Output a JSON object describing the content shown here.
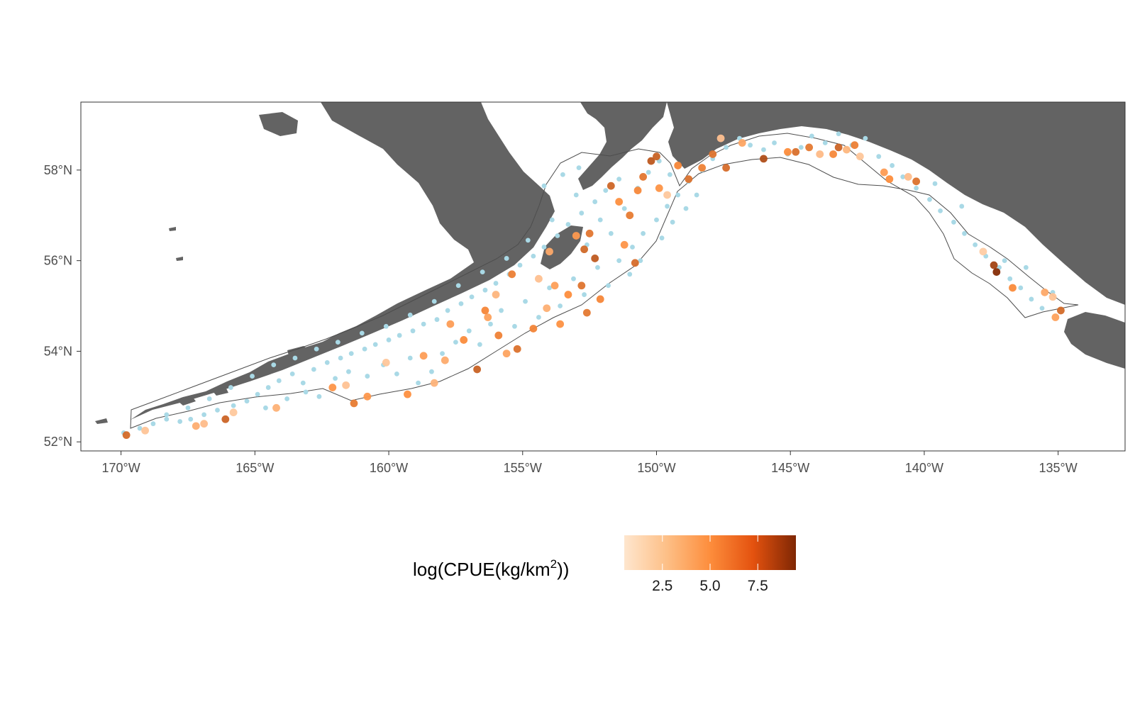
{
  "colors": {
    "land": "#636363",
    "survey_outline": "#4d4d4d",
    "panel_border": "#333333",
    "absence_point": "#a9d9e6",
    "gradient_low": "#fee6ce",
    "gradient_mid": "#fd8d3c",
    "gradient_high": "#7f2704"
  },
  "chart_data": {
    "type": "scatter",
    "map_type": "survey station map",
    "x_axis": {
      "range": [
        -171.5,
        -132.5
      ],
      "ticks": [
        -170,
        -165,
        -160,
        -155,
        -150,
        -145,
        -140,
        -135
      ],
      "tick_labels": [
        "170°W",
        "165°W",
        "160°W",
        "155°W",
        "150°W",
        "145°W",
        "140°W",
        "135°W"
      ]
    },
    "y_axis": {
      "range": [
        51.8,
        59.5
      ],
      "ticks": [
        52,
        54,
        56,
        58
      ],
      "tick_labels": [
        "52°N",
        "54°N",
        "56°N",
        "58°N"
      ]
    },
    "grid": false,
    "legend": {
      "position": "bottom",
      "title_prefix": "log(CPUE(kg",
      "title_slash": "/",
      "title_unit": "km",
      "title_exponent": "2",
      "title_suffix": "))",
      "range": [
        0.5,
        9.5
      ],
      "breaks": [
        2.5,
        5.0,
        7.5
      ],
      "break_labels": [
        "2.5",
        "5.0",
        "7.5"
      ]
    },
    "zero_catch_stations": [
      [
        -169.9,
        52.2
      ],
      [
        -169.3,
        52.3
      ],
      [
        -168.8,
        52.4
      ],
      [
        -168.3,
        52.5
      ],
      [
        -167.8,
        52.45
      ],
      [
        -167.4,
        52.5
      ],
      [
        -166.9,
        52.6
      ],
      [
        -166.4,
        52.7
      ],
      [
        -165.8,
        52.8
      ],
      [
        -165.3,
        52.9
      ],
      [
        -164.9,
        53.05
      ],
      [
        -164.5,
        53.2
      ],
      [
        -164.1,
        53.35
      ],
      [
        -163.6,
        53.5
      ],
      [
        -163.2,
        53.3
      ],
      [
        -162.8,
        53.6
      ],
      [
        -162.3,
        53.75
      ],
      [
        -161.8,
        53.85
      ],
      [
        -161.4,
        53.95
      ],
      [
        -160.9,
        54.05
      ],
      [
        -160.5,
        54.15
      ],
      [
        -160.0,
        54.25
      ],
      [
        -159.6,
        54.35
      ],
      [
        -159.1,
        54.45
      ],
      [
        -158.7,
        54.6
      ],
      [
        -158.2,
        54.7
      ],
      [
        -157.8,
        54.9
      ],
      [
        -157.3,
        55.05
      ],
      [
        -156.9,
        55.2
      ],
      [
        -156.4,
        55.35
      ],
      [
        -156.0,
        55.5
      ],
      [
        -155.5,
        55.7
      ],
      [
        -155.1,
        55.9
      ],
      [
        -154.6,
        56.1
      ],
      [
        -154.2,
        56.3
      ],
      [
        -153.7,
        56.55
      ],
      [
        -153.3,
        56.8
      ],
      [
        -152.8,
        57.05
      ],
      [
        -152.3,
        57.3
      ],
      [
        -151.9,
        57.55
      ],
      [
        -151.4,
        57.8
      ],
      [
        -164.6,
        52.75
      ],
      [
        -163.8,
        52.95
      ],
      [
        -163.1,
        53.1
      ],
      [
        -162.6,
        53.0
      ],
      [
        -162.0,
        53.4
      ],
      [
        -161.5,
        53.55
      ],
      [
        -160.8,
        53.45
      ],
      [
        -160.2,
        53.7
      ],
      [
        -159.7,
        53.5
      ],
      [
        -159.2,
        53.85
      ],
      [
        -158.9,
        53.3
      ],
      [
        -158.4,
        53.55
      ],
      [
        -158.0,
        53.95
      ],
      [
        -157.5,
        54.2
      ],
      [
        -157.0,
        54.45
      ],
      [
        -156.6,
        54.15
      ],
      [
        -156.2,
        54.6
      ],
      [
        -155.8,
        54.9
      ],
      [
        -155.3,
        54.55
      ],
      [
        -154.9,
        55.1
      ],
      [
        -154.4,
        54.75
      ],
      [
        -154.0,
        55.4
      ],
      [
        -153.6,
        55.0
      ],
      [
        -153.1,
        55.6
      ],
      [
        -152.7,
        55.25
      ],
      [
        -152.2,
        55.85
      ],
      [
        -151.8,
        55.45
      ],
      [
        -151.4,
        56.0
      ],
      [
        -150.9,
        56.3
      ],
      [
        -150.5,
        56.6
      ],
      [
        -150.0,
        56.9
      ],
      [
        -149.6,
        57.2
      ],
      [
        -149.2,
        57.45
      ],
      [
        -148.8,
        57.75
      ],
      [
        -148.3,
        58.0
      ],
      [
        -147.9,
        58.25
      ],
      [
        -147.4,
        58.5
      ],
      [
        -146.9,
        58.7
      ],
      [
        -146.5,
        58.55
      ],
      [
        -146.0,
        58.45
      ],
      [
        -145.6,
        58.6
      ],
      [
        -145.1,
        58.35
      ],
      [
        -144.6,
        58.5
      ],
      [
        -144.2,
        58.75
      ],
      [
        -143.7,
        58.6
      ],
      [
        -143.2,
        58.8
      ],
      [
        -142.7,
        58.55
      ],
      [
        -142.2,
        58.7
      ],
      [
        -141.7,
        58.3
      ],
      [
        -141.2,
        58.1
      ],
      [
        -140.8,
        57.85
      ],
      [
        -140.3,
        57.6
      ],
      [
        -139.8,
        57.35
      ],
      [
        -139.4,
        57.1
      ],
      [
        -138.9,
        56.85
      ],
      [
        -138.5,
        56.6
      ],
      [
        -138.1,
        56.35
      ],
      [
        -137.7,
        56.1
      ],
      [
        -137.2,
        55.85
      ],
      [
        -136.8,
        55.6
      ],
      [
        -136.4,
        55.4
      ],
      [
        -136.0,
        55.15
      ],
      [
        -135.6,
        54.95
      ],
      [
        -135.2,
        55.3
      ],
      [
        -136.2,
        55.85
      ],
      [
        -137.0,
        56.0
      ],
      [
        -138.6,
        57.2
      ],
      [
        -139.6,
        57.7
      ],
      [
        -153.5,
        57.9
      ],
      [
        -152.9,
        58.05
      ],
      [
        -154.2,
        57.65
      ],
      [
        -153.0,
        57.45
      ],
      [
        -152.1,
        56.9
      ],
      [
        -151.7,
        56.6
      ],
      [
        -152.6,
        56.35
      ],
      [
        -150.7,
        57.6
      ],
      [
        -150.3,
        57.95
      ],
      [
        -149.9,
        58.2
      ],
      [
        -149.5,
        57.9
      ],
      [
        -151.2,
        57.15
      ],
      [
        -153.9,
        56.9
      ],
      [
        -154.8,
        56.45
      ],
      [
        -155.6,
        56.05
      ],
      [
        -156.5,
        55.75
      ],
      [
        -157.4,
        55.45
      ],
      [
        -158.3,
        55.1
      ],
      [
        -159.2,
        54.8
      ],
      [
        -160.1,
        54.55
      ],
      [
        -161.0,
        54.4
      ],
      [
        -161.9,
        54.2
      ],
      [
        -162.7,
        54.05
      ],
      [
        -163.5,
        53.85
      ],
      [
        -164.3,
        53.7
      ],
      [
        -165.1,
        53.45
      ],
      [
        -165.9,
        53.2
      ],
      [
        -166.7,
        52.95
      ],
      [
        -167.5,
        52.75
      ],
      [
        -168.3,
        52.6
      ],
      [
        -150.6,
        56.0
      ],
      [
        -151.0,
        55.7
      ],
      [
        -149.8,
        56.5
      ],
      [
        -149.4,
        56.85
      ],
      [
        -148.9,
        57.15
      ],
      [
        -148.5,
        57.45
      ]
    ],
    "positive_catch_stations": [
      [
        -169.8,
        52.15,
        6.5
      ],
      [
        -169.1,
        52.25,
        2.2
      ],
      [
        -166.9,
        52.4,
        2.6
      ],
      [
        -166.1,
        52.5,
        6.8
      ],
      [
        -164.2,
        52.75,
        3.2
      ],
      [
        -161.6,
        53.25,
        2.3
      ],
      [
        -161.3,
        52.85,
        5.8
      ],
      [
        -160.8,
        53.0,
        4.5
      ],
      [
        -160.1,
        53.75,
        2.1
      ],
      [
        -159.3,
        53.05,
        4.9
      ],
      [
        -158.3,
        53.3,
        3.1
      ],
      [
        -157.9,
        53.8,
        3.5
      ],
      [
        -157.7,
        54.6,
        4.2
      ],
      [
        -157.2,
        54.25,
        5.1
      ],
      [
        -156.7,
        53.6,
        6.9
      ],
      [
        -156.3,
        54.75,
        4.0
      ],
      [
        -155.9,
        54.35,
        5.5
      ],
      [
        -155.6,
        53.95,
        3.9
      ],
      [
        -155.2,
        54.05,
        6.2
      ],
      [
        -154.6,
        54.5,
        5.4
      ],
      [
        -154.1,
        54.95,
        3.3
      ],
      [
        -153.8,
        55.45,
        4.1
      ],
      [
        -153.6,
        54.6,
        4.8
      ],
      [
        -153.3,
        55.25,
        5.0
      ],
      [
        -152.8,
        55.45,
        6.1
      ],
      [
        -152.6,
        54.85,
        5.9
      ],
      [
        -152.3,
        56.05,
        7.2
      ],
      [
        -152.7,
        56.25,
        6.6
      ],
      [
        -152.1,
        55.15,
        5.3
      ],
      [
        -153.0,
        56.55,
        4.4
      ],
      [
        -152.5,
        56.6,
        6.0
      ],
      [
        -154.0,
        56.2,
        3.6
      ],
      [
        -154.4,
        55.6,
        2.4
      ],
      [
        -155.4,
        55.7,
        5.6
      ],
      [
        -156.0,
        55.25,
        3.0
      ],
      [
        -151.2,
        56.35,
        4.6
      ],
      [
        -150.8,
        55.95,
        6.4
      ],
      [
        -151.0,
        57.0,
        5.8
      ],
      [
        -151.4,
        57.3,
        4.9
      ],
      [
        -150.7,
        57.55,
        5.2
      ],
      [
        -150.5,
        57.85,
        6.0
      ],
      [
        -149.9,
        57.6,
        4.7
      ],
      [
        -150.2,
        58.2,
        7.3
      ],
      [
        -150.0,
        58.3,
        6.9
      ],
      [
        -149.6,
        57.45,
        2.0
      ],
      [
        -149.2,
        58.1,
        5.3
      ],
      [
        -148.8,
        57.8,
        6.2
      ],
      [
        -148.3,
        58.05,
        5.5
      ],
      [
        -147.9,
        58.35,
        6.1
      ],
      [
        -147.6,
        58.7,
        2.4
      ],
      [
        -147.4,
        58.05,
        6.4
      ],
      [
        -146.0,
        58.25,
        7.8
      ],
      [
        -145.1,
        58.4,
        5.0
      ],
      [
        -144.8,
        58.4,
        6.3
      ],
      [
        -144.3,
        58.5,
        5.9
      ],
      [
        -143.9,
        58.35,
        2.7
      ],
      [
        -143.4,
        58.35,
        5.2
      ],
      [
        -143.2,
        58.5,
        6.8
      ],
      [
        -142.9,
        58.45,
        2.9
      ],
      [
        -142.4,
        58.3,
        2.1
      ],
      [
        -142.6,
        58.55,
        5.6
      ],
      [
        -141.5,
        57.95,
        4.3
      ],
      [
        -141.3,
        57.8,
        5.0
      ],
      [
        -140.3,
        57.75,
        6.2
      ],
      [
        -140.6,
        57.85,
        2.5
      ],
      [
        -137.8,
        56.2,
        1.8
      ],
      [
        -137.4,
        55.9,
        8.2
      ],
      [
        -137.3,
        55.75,
        9.3
      ],
      [
        -136.7,
        55.4,
        5.1
      ],
      [
        -135.5,
        55.3,
        3.6
      ],
      [
        -135.2,
        55.2,
        2.2
      ],
      [
        -134.9,
        54.9,
        6.5
      ],
      [
        -135.1,
        54.75,
        4.0
      ],
      [
        -162.1,
        53.2,
        4.6
      ],
      [
        -167.2,
        52.35,
        3.4
      ],
      [
        -165.8,
        52.65,
        2.0
      ],
      [
        -158.7,
        53.9,
        4.2
      ],
      [
        -156.4,
        54.9,
        5.3
      ],
      [
        -151.7,
        57.65,
        6.7
      ],
      [
        -146.8,
        58.6,
        3.8
      ]
    ]
  }
}
